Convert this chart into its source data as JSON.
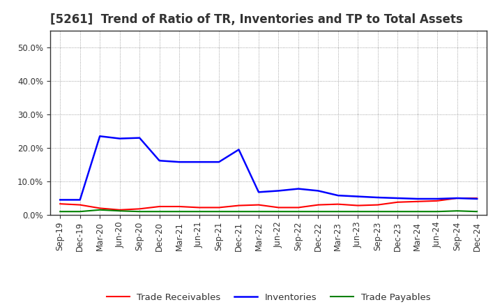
{
  "title": "[5261]  Trend of Ratio of TR, Inventories and TP to Total Assets",
  "x_labels": [
    "Sep-19",
    "Dec-19",
    "Mar-20",
    "Jun-20",
    "Sep-20",
    "Dec-20",
    "Mar-21",
    "Jun-21",
    "Sep-21",
    "Dec-21",
    "Mar-22",
    "Jun-22",
    "Sep-22",
    "Dec-22",
    "Mar-23",
    "Jun-23",
    "Sep-23",
    "Dec-23",
    "Mar-24",
    "Jun-24",
    "Sep-24",
    "Dec-24"
  ],
  "trade_receivables": [
    0.033,
    0.03,
    0.02,
    0.015,
    0.018,
    0.025,
    0.025,
    0.022,
    0.022,
    0.028,
    0.03,
    0.022,
    0.022,
    0.03,
    0.032,
    0.028,
    0.03,
    0.038,
    0.04,
    0.042,
    0.05,
    0.05
  ],
  "inventories": [
    0.045,
    0.045,
    0.235,
    0.228,
    0.23,
    0.162,
    0.158,
    0.158,
    0.158,
    0.195,
    0.068,
    0.072,
    0.078,
    0.072,
    0.058,
    0.055,
    0.052,
    0.05,
    0.048,
    0.048,
    0.05,
    0.048
  ],
  "trade_payables": [
    0.01,
    0.01,
    0.015,
    0.012,
    0.01,
    0.01,
    0.01,
    0.01,
    0.01,
    0.01,
    0.01,
    0.01,
    0.01,
    0.01,
    0.01,
    0.01,
    0.01,
    0.01,
    0.01,
    0.01,
    0.012,
    0.01
  ],
  "ylim": [
    0.0,
    0.55
  ],
  "yticks": [
    0.0,
    0.1,
    0.2,
    0.3,
    0.4,
    0.5
  ],
  "line_colors": {
    "trade_receivables": "#ff0000",
    "inventories": "#0000ff",
    "trade_payables": "#008000"
  },
  "legend_labels": [
    "Trade Receivables",
    "Inventories",
    "Trade Payables"
  ],
  "background_color": "#ffffff",
  "grid_color": "#888888",
  "title_fontsize": 12,
  "tick_fontsize": 8.5,
  "legend_fontsize": 9.5,
  "title_color": "#333333"
}
